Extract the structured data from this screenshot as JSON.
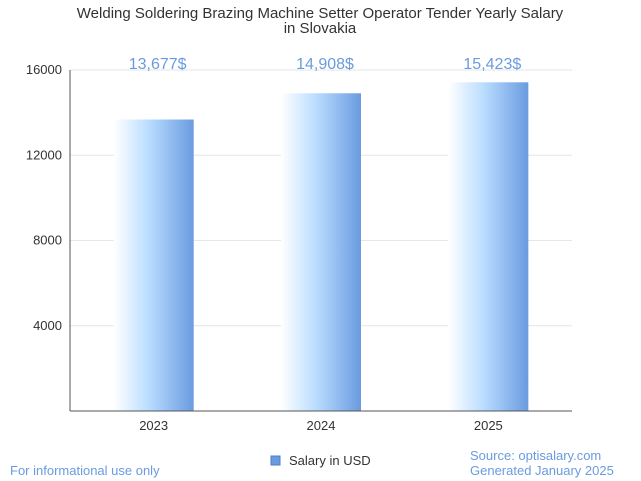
{
  "chart_data": {
    "type": "bar",
    "title_lines": [
      "Welding Soldering Brazing Machine Setter Operator Tender Yearly Salary",
      "in Slovakia"
    ],
    "categories": [
      "2023",
      "2024",
      "2025"
    ],
    "series": [
      {
        "name": "Salary in USD",
        "values": [
          13677,
          14908,
          15423
        ]
      }
    ],
    "data_labels": [
      "13,677$",
      "14,908$",
      "15,423$"
    ],
    "ylim": [
      0,
      16000
    ],
    "yticks": [
      4000,
      8000,
      12000,
      16000
    ],
    "grid": true,
    "legend_position": "bottom-center",
    "colors": {
      "bar_light": "#ffffff",
      "bar_mid": "#b8dcff",
      "bar_dark": "#6a9be0",
      "label": "#6a9be0",
      "axis": "#555555",
      "grid": "#e6e6e6"
    }
  },
  "footer": {
    "left": "For informational use only",
    "source": "Source: optisalary.com",
    "generated": "Generated January 2025"
  }
}
